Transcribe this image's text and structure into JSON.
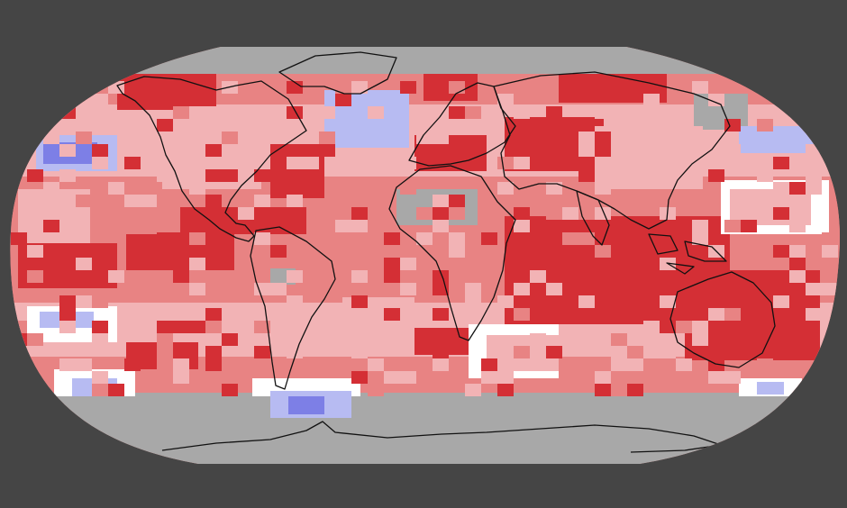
{
  "map": {
    "projection": "Robinson",
    "colors": {
      "background": "#454545",
      "no_data": "#a8a8a8",
      "record_warmest": "#d42f35",
      "much_warmer": "#e88383",
      "warmer": "#f2b3b5",
      "near_average": "#ffffff",
      "cooler": "#b7bbf2",
      "much_cooler": "#7d7fe6",
      "coastline": "#111111"
    },
    "legend_categories": [
      "no_data",
      "record_warmest",
      "much_warmer",
      "warmer",
      "near_average",
      "cooler",
      "much_cooler"
    ]
  }
}
